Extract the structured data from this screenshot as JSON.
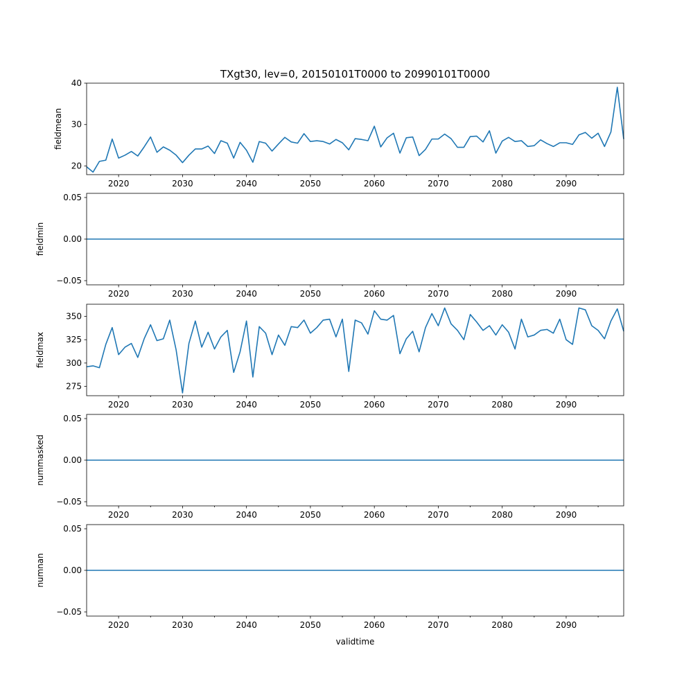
{
  "title": "TXgt30, lev=0, 20150101T0000 to 20990101T0000",
  "xlabel": "validtime",
  "line_color": "#1f77b4",
  "chart_data": [
    {
      "type": "line",
      "ylabel": "fieldmean",
      "xlim": [
        2015,
        2099
      ],
      "ylim": [
        17.9,
        40.0
      ],
      "x_ticks": [
        "2020",
        "2030",
        "2040",
        "2050",
        "2060",
        "2070",
        "2080",
        "2090"
      ],
      "y_ticks": [
        "20",
        "30",
        "40"
      ],
      "x": [
        2015,
        2016,
        2017,
        2018,
        2019,
        2020,
        2021,
        2022,
        2023,
        2024,
        2025,
        2026,
        2027,
        2028,
        2029,
        2030,
        2031,
        2032,
        2033,
        2034,
        2035,
        2036,
        2037,
        2038,
        2039,
        2040,
        2041,
        2042,
        2043,
        2044,
        2045,
        2046,
        2047,
        2048,
        2049,
        2050,
        2051,
        2052,
        2053,
        2054,
        2055,
        2056,
        2057,
        2058,
        2059,
        2060,
        2061,
        2062,
        2063,
        2064,
        2065,
        2066,
        2067,
        2068,
        2069,
        2070,
        2071,
        2072,
        2073,
        2074,
        2075,
        2076,
        2077,
        2078,
        2079,
        2080,
        2081,
        2082,
        2083,
        2084,
        2085,
        2086,
        2087,
        2088,
        2089,
        2090,
        2091,
        2092,
        2093,
        2094,
        2095,
        2096,
        2097,
        2098,
        2099
      ],
      "values": [
        19.8,
        18.5,
        21.1,
        21.4,
        26.5,
        21.9,
        22.6,
        23.5,
        22.4,
        24.6,
        27.0,
        23.3,
        24.6,
        23.8,
        22.6,
        20.8,
        22.6,
        24.1,
        24.1,
        24.8,
        23.0,
        26.1,
        25.5,
        21.9,
        25.7,
        23.8,
        20.9,
        25.9,
        25.5,
        23.6,
        25.3,
        26.9,
        25.8,
        25.5,
        27.8,
        25.9,
        26.1,
        25.9,
        25.3,
        26.4,
        25.6,
        23.9,
        26.6,
        26.4,
        26.1,
        29.6,
        24.6,
        26.8,
        27.9,
        23.1,
        26.8,
        27.0,
        22.5,
        24.0,
        26.5,
        26.5,
        27.7,
        26.6,
        24.5,
        24.5,
        27.1,
        27.2,
        25.8,
        28.5,
        23.1,
        26.0,
        26.9,
        25.9,
        26.1,
        24.7,
        24.9,
        26.3,
        25.4,
        24.7,
        25.6,
        25.6,
        25.2,
        27.5,
        28.1,
        26.7,
        27.9,
        24.7,
        28.2,
        39.0,
        26.5
      ]
    },
    {
      "type": "line",
      "ylabel": "fieldmin",
      "xlim": [
        2015,
        2099
      ],
      "ylim": [
        -0.055,
        0.055
      ],
      "x_ticks": [
        "2020",
        "2030",
        "2040",
        "2050",
        "2060",
        "2070",
        "2080",
        "2090"
      ],
      "y_ticks": [
        "0.05",
        "0.00",
        "−0.05"
      ],
      "x": [
        2015,
        2099
      ],
      "values": [
        0,
        0
      ]
    },
    {
      "type": "line",
      "ylabel": "fieldmax",
      "xlim": [
        2015,
        2099
      ],
      "ylim": [
        265,
        363
      ],
      "x_ticks": [
        "2020",
        "2030",
        "2040",
        "2050",
        "2060",
        "2070",
        "2080",
        "2090"
      ],
      "y_ticks": [
        "350",
        "325",
        "300",
        "275"
      ],
      "x": [
        2015,
        2016,
        2017,
        2018,
        2019,
        2020,
        2021,
        2022,
        2023,
        2024,
        2025,
        2026,
        2027,
        2028,
        2029,
        2030,
        2031,
        2032,
        2033,
        2034,
        2035,
        2036,
        2037,
        2038,
        2039,
        2040,
        2041,
        2042,
        2043,
        2044,
        2045,
        2046,
        2047,
        2048,
        2049,
        2050,
        2051,
        2052,
        2053,
        2054,
        2055,
        2056,
        2057,
        2058,
        2059,
        2060,
        2061,
        2062,
        2063,
        2064,
        2065,
        2066,
        2067,
        2068,
        2069,
        2070,
        2071,
        2072,
        2073,
        2074,
        2075,
        2076,
        2077,
        2078,
        2079,
        2080,
        2081,
        2082,
        2083,
        2084,
        2085,
        2086,
        2087,
        2088,
        2089,
        2090,
        2091,
        2092,
        2093,
        2094,
        2095,
        2096,
        2097,
        2098,
        2099
      ],
      "values": [
        296,
        297,
        295,
        320,
        338,
        309,
        317,
        321,
        306,
        326,
        341,
        324,
        326,
        346,
        314,
        268,
        321,
        345,
        317,
        333,
        315,
        328,
        335,
        290,
        312,
        345,
        285,
        339,
        332,
        309,
        330,
        319,
        339,
        338,
        346,
        332,
        338,
        346,
        347,
        328,
        347,
        291,
        346,
        343,
        331,
        356,
        347,
        346,
        351,
        310,
        326,
        334,
        312,
        338,
        353,
        340,
        359,
        342,
        335,
        325,
        352,
        344,
        335,
        340,
        330,
        341,
        333,
        315,
        347,
        328,
        330,
        335,
        336,
        332,
        347,
        325,
        320,
        359,
        357,
        340,
        335,
        326,
        345,
        358,
        334
      ]
    },
    {
      "type": "line",
      "ylabel": "nummasked",
      "xlim": [
        2015,
        2099
      ],
      "ylim": [
        -0.055,
        0.055
      ],
      "x_ticks": [
        "2020",
        "2030",
        "2040",
        "2050",
        "2060",
        "2070",
        "2080",
        "2090"
      ],
      "y_ticks": [
        "0.05",
        "0.00",
        "−0.05"
      ],
      "x": [
        2015,
        2099
      ],
      "values": [
        0,
        0
      ]
    },
    {
      "type": "line",
      "ylabel": "numnan",
      "xlim": [
        2015,
        2099
      ],
      "ylim": [
        -0.055,
        0.055
      ],
      "x_ticks": [
        "2020",
        "2030",
        "2040",
        "2050",
        "2060",
        "2070",
        "2080",
        "2090"
      ],
      "y_ticks": [
        "0.05",
        "0.00",
        "−0.05"
      ],
      "x": [
        2015,
        2099
      ],
      "values": [
        0,
        0
      ]
    }
  ]
}
